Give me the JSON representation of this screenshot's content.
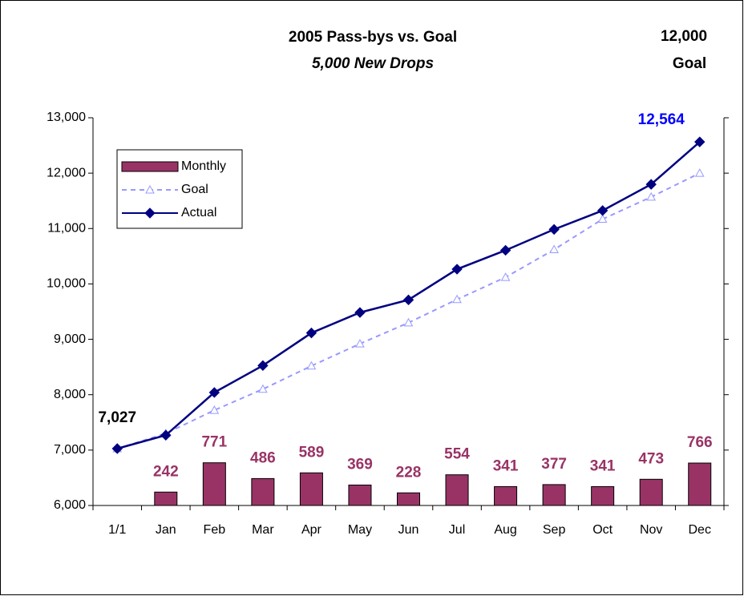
{
  "chart_data": {
    "type": "bar-line",
    "title": "2005 Pass-bys vs. Goal",
    "subtitle": "5,000 New Drops",
    "annotations": [
      "12,000",
      "Goal"
    ],
    "categories": [
      "1/1",
      "Jan",
      "Feb",
      "Mar",
      "Apr",
      "May",
      "Jun",
      "Jul",
      "Aug",
      "Sep",
      "Oct",
      "Nov",
      "Dec"
    ],
    "series": [
      {
        "name": "Monthly",
        "type": "bar",
        "axis": "y2",
        "color": "#993366",
        "values": [
          null,
          242,
          771,
          486,
          589,
          369,
          228,
          554,
          341,
          377,
          341,
          473,
          766
        ]
      },
      {
        "name": "Goal",
        "type": "line",
        "color": "#9999ff",
        "dashed": true,
        "marker": "triangle",
        "values": [
          7027,
          7300,
          7720,
          8100,
          8520,
          8920,
          9300,
          9720,
          10120,
          10620,
          11170,
          11570,
          12000
        ]
      },
      {
        "name": "Actual",
        "type": "line",
        "color": "#000080",
        "marker": "diamond",
        "values": [
          7027,
          7269,
          8040,
          8526,
          9115,
          9484,
          9712,
          10266,
          10607,
          10984,
          11325,
          11798,
          12564
        ],
        "value_labels": [
          "7,027",
          null,
          null,
          null,
          null,
          null,
          null,
          null,
          null,
          null,
          null,
          null,
          "12,564"
        ],
        "label_colors": [
          "#000000",
          null,
          null,
          null,
          null,
          null,
          null,
          null,
          null,
          null,
          null,
          null,
          "#0000ff"
        ]
      }
    ],
    "ylim": [
      6000,
      13000
    ],
    "yticks": [
      {
        "value": 6000,
        "label": "6,000"
      },
      {
        "value": 7000,
        "label": "7,000"
      },
      {
        "value": 8000,
        "label": "8,000"
      },
      {
        "value": 9000,
        "label": "9,000"
      },
      {
        "value": 10000,
        "label": "10,000"
      },
      {
        "value": 11000,
        "label": "11,000"
      },
      {
        "value": 12000,
        "label": "12,000"
      },
      {
        "value": 13000,
        "label": "13,000"
      }
    ],
    "y2lim": [
      0,
      7000
    ],
    "legend": "upper left"
  }
}
